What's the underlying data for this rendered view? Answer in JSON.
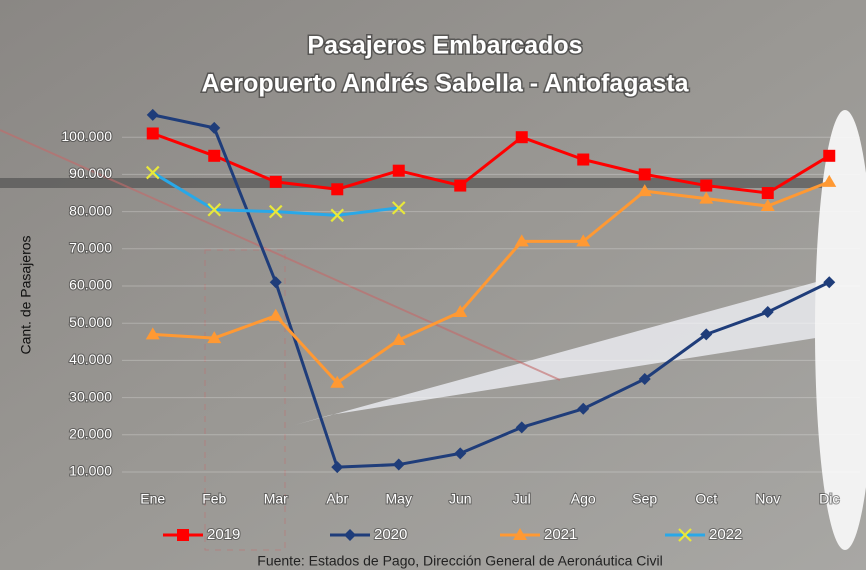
{
  "chart_data": {
    "type": "line",
    "title": "Pasajeros  Embarcados",
    "subtitle": "Aeropuerto Andrés Sabella - Antofagasta",
    "y_label": "Cant. de Pasajeros",
    "source": "Fuente: Estados de Pago, Dirección General de Aeronáutica Civil",
    "categories": [
      "Ene",
      "Feb",
      "Mar",
      "Abr",
      "May",
      "Jun",
      "Jul",
      "Ago",
      "Sep",
      "Oct",
      "Nov",
      "Dic"
    ],
    "series": [
      {
        "name": "2019",
        "color": "#ff0000",
        "marker": "square",
        "values": [
          101000,
          95000,
          88000,
          86000,
          91000,
          87000,
          100000,
          94000,
          90000,
          87000,
          85000,
          95000
        ]
      },
      {
        "name": "2020",
        "color": "#1f3d7a",
        "marker": "diamond",
        "values": [
          106000,
          102500,
          61000,
          11300,
          12000,
          15000,
          22000,
          27000,
          35000,
          47000,
          53000,
          61000
        ]
      },
      {
        "name": "2021",
        "color": "#ff9933",
        "marker": "triangle",
        "values": [
          47000,
          46000,
          52000,
          34000,
          45500,
          53000,
          72000,
          72000,
          85500,
          83500,
          81500,
          88000
        ]
      },
      {
        "name": "2022",
        "color": "#29a8e8",
        "marker": "x",
        "values": [
          90500,
          80500,
          80000,
          79000,
          81000,
          null,
          null,
          null,
          null,
          null,
          null,
          null
        ]
      }
    ],
    "ylim": [
      10000,
      110000
    ],
    "yticks": [
      {
        "value": 10000,
        "label": "10.000"
      },
      {
        "value": 20000,
        "label": "20.000"
      },
      {
        "value": 30000,
        "label": "30.000"
      },
      {
        "value": 40000,
        "label": "40.000"
      },
      {
        "value": 50000,
        "label": "50.000"
      },
      {
        "value": 60000,
        "label": "60.000"
      },
      {
        "value": 70000,
        "label": "70.000"
      },
      {
        "value": 80000,
        "label": "80.000"
      },
      {
        "value": 90000,
        "label": "90.000"
      },
      {
        "value": 100000,
        "label": "100.000"
      }
    ],
    "grid": true,
    "legend": "bottom"
  }
}
